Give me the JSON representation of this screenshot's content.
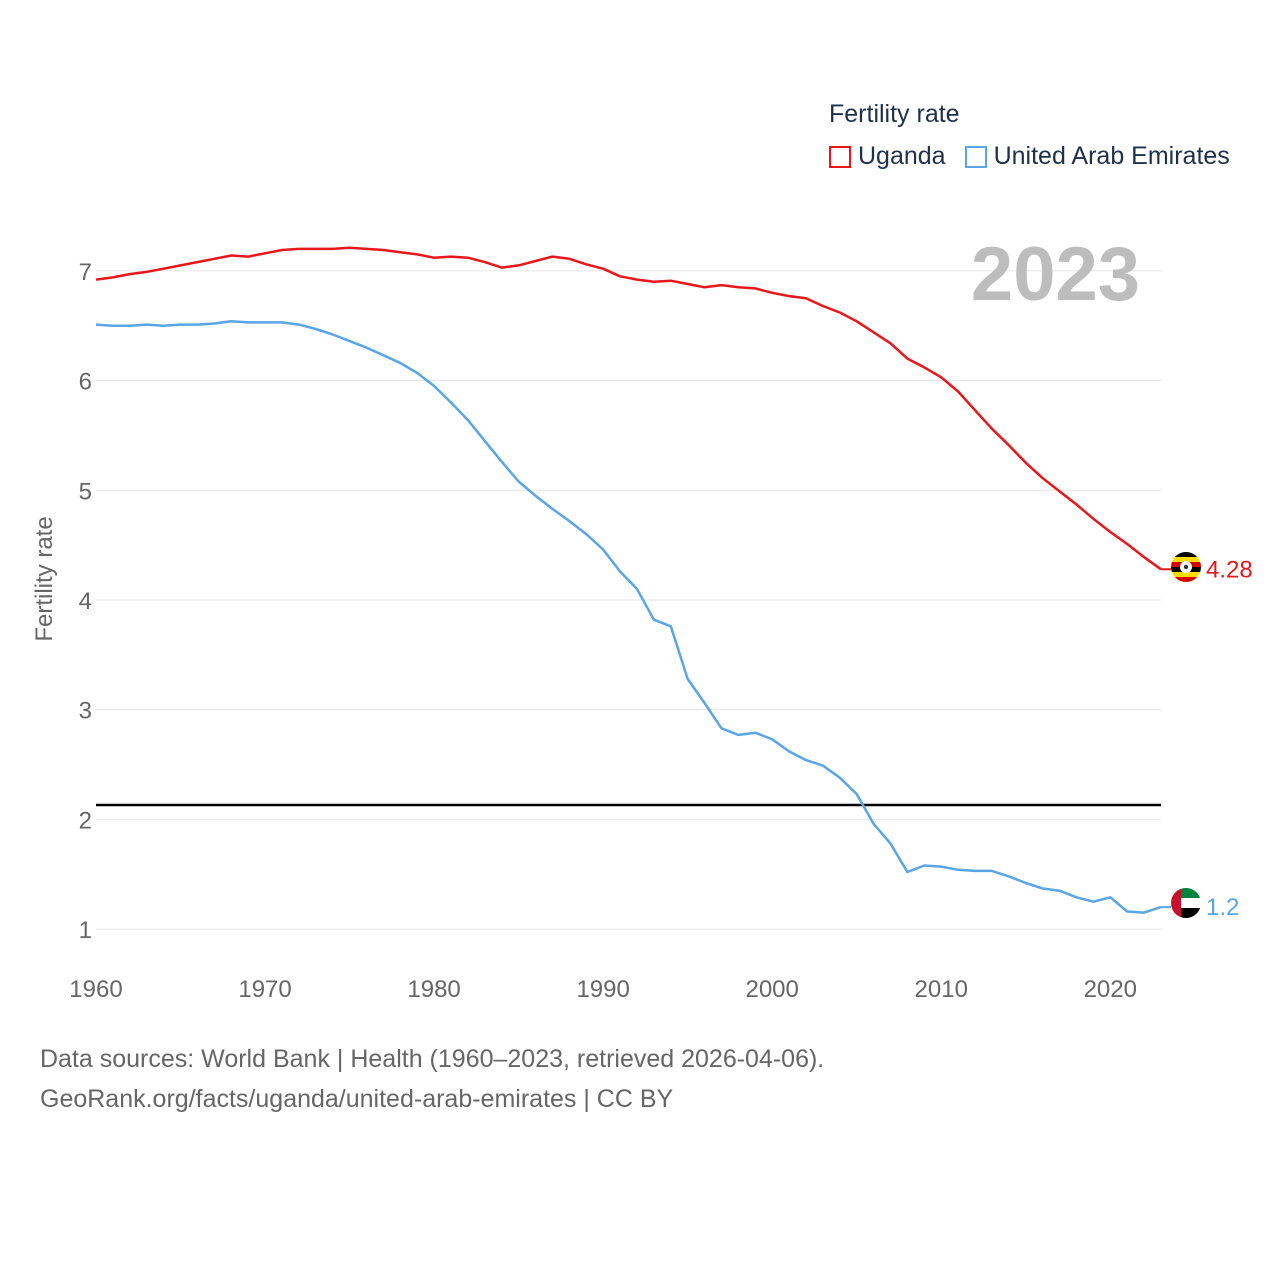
{
  "legend": {
    "title": "Fertility rate",
    "items": [
      {
        "label": "Uganda",
        "color": "#e8171c"
      },
      {
        "label": "United Arab Emirates",
        "color": "#5aa5e6"
      }
    ]
  },
  "year_label": "2023",
  "footer": {
    "line1": "Data sources: World Bank | Health (1960–2023, retrieved 2026-04-06).",
    "line2": "GeoRank.org/facts/uganda/united-arab-emirates | CC BY"
  },
  "chart_data": {
    "type": "line",
    "title": "Fertility rate",
    "xlabel": "",
    "ylabel": "Fertility rate",
    "xlim": [
      1960,
      2023
    ],
    "ylim": [
      0.7,
      7.5
    ],
    "x_ticks": [
      1960,
      1970,
      1980,
      1990,
      2000,
      2010,
      2020
    ],
    "y_ticks": [
      1,
      2,
      3,
      4,
      5,
      6,
      7
    ],
    "grid": true,
    "reference_line": {
      "value": 2.1,
      "color": "#000000"
    },
    "x": [
      1960,
      1961,
      1962,
      1963,
      1964,
      1965,
      1966,
      1967,
      1968,
      1969,
      1970,
      1971,
      1972,
      1973,
      1974,
      1975,
      1976,
      1977,
      1978,
      1979,
      1980,
      1981,
      1982,
      1983,
      1984,
      1985,
      1986,
      1987,
      1988,
      1989,
      1990,
      1991,
      1992,
      1993,
      1994,
      1995,
      1996,
      1997,
      1998,
      1999,
      2000,
      2001,
      2002,
      2003,
      2004,
      2005,
      2006,
      2007,
      2008,
      2009,
      2010,
      2011,
      2012,
      2013,
      2014,
      2015,
      2016,
      2017,
      2018,
      2019,
      2020,
      2021,
      2022,
      2023
    ],
    "series": [
      {
        "name": "Uganda",
        "color": "#e8171c",
        "end_label": "4.28",
        "values": [
          6.92,
          6.94,
          6.97,
          6.99,
          7.02,
          7.05,
          7.08,
          7.11,
          7.14,
          7.13,
          7.16,
          7.19,
          7.2,
          7.2,
          7.2,
          7.21,
          7.2,
          7.19,
          7.17,
          7.15,
          7.12,
          7.13,
          7.12,
          7.08,
          7.03,
          7.05,
          7.09,
          7.13,
          7.11,
          7.06,
          7.02,
          6.95,
          6.92,
          6.9,
          6.91,
          6.88,
          6.85,
          6.87,
          6.85,
          6.84,
          6.8,
          6.77,
          6.75,
          6.68,
          6.62,
          6.54,
          6.44,
          6.34,
          6.2,
          6.12,
          6.03,
          5.9,
          5.73,
          5.56,
          5.41,
          5.25,
          5.11,
          4.99,
          4.87,
          4.74,
          4.62,
          4.51,
          4.39,
          4.28
        ]
      },
      {
        "name": "United Arab Emirates",
        "color": "#5aa5e6",
        "end_label": "1.2",
        "values": [
          6.51,
          6.5,
          6.5,
          6.51,
          6.5,
          6.51,
          6.51,
          6.52,
          6.54,
          6.53,
          6.53,
          6.53,
          6.51,
          6.47,
          6.42,
          6.36,
          6.3,
          6.23,
          6.16,
          6.07,
          5.95,
          5.8,
          5.64,
          5.45,
          5.26,
          5.08,
          4.95,
          4.83,
          4.72,
          4.6,
          4.46,
          4.26,
          4.1,
          3.82,
          3.76,
          3.28,
          3.06,
          2.83,
          2.77,
          2.79,
          2.73,
          2.62,
          2.54,
          2.49,
          2.38,
          2.23,
          1.96,
          1.78,
          1.52,
          1.58,
          1.57,
          1.54,
          1.53,
          1.53,
          1.48,
          1.42,
          1.37,
          1.35,
          1.29,
          1.25,
          1.29,
          1.16,
          1.15,
          1.2
        ]
      }
    ]
  }
}
